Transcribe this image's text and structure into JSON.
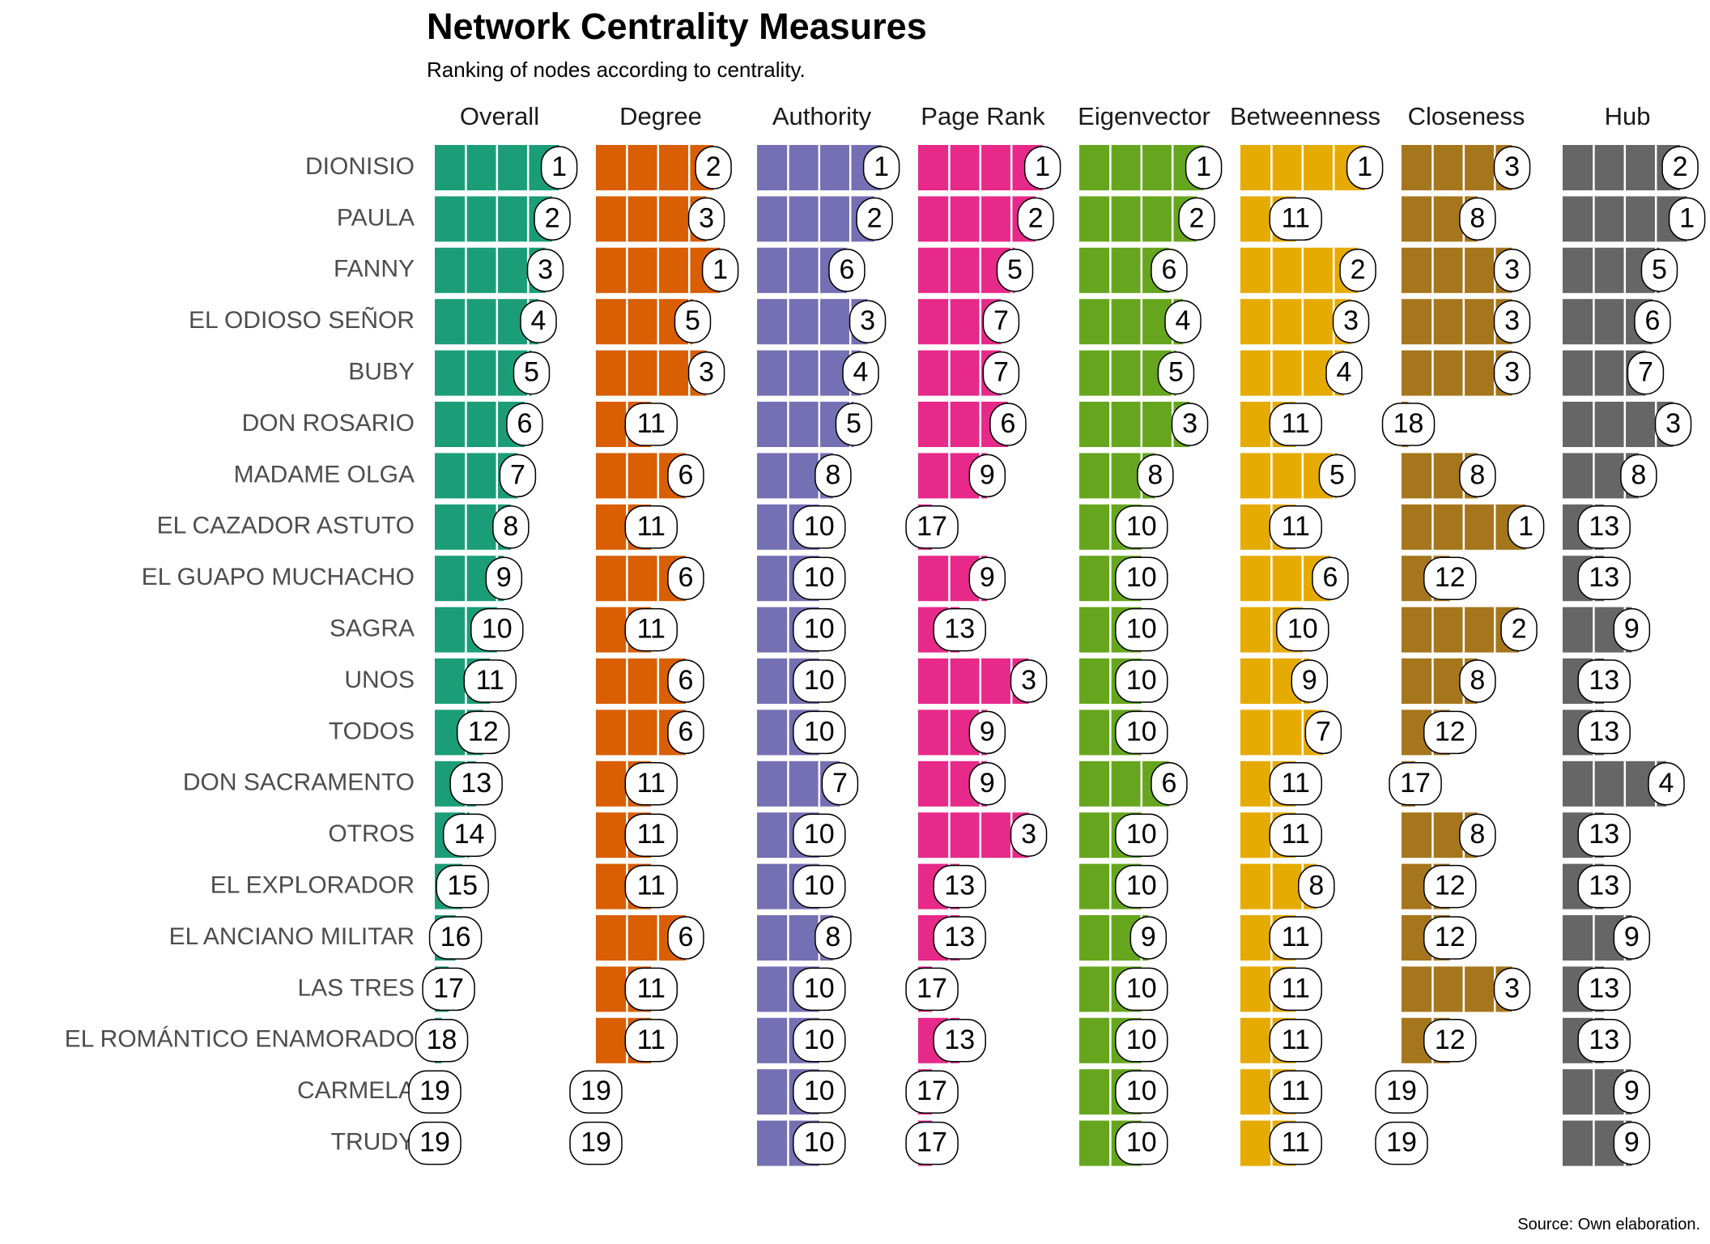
{
  "chart_data": {
    "type": "bar",
    "title": "Network Centrality Measures",
    "subtitle": "Ranking of nodes according to centrality.",
    "caption": "Source: Own elaboration.",
    "categories": [
      "DIONISIO",
      "PAULA",
      "FANNY",
      "EL ODIOSO SEÑOR",
      "BUBY",
      "DON ROSARIO",
      "MADAME OLGA",
      "EL CAZADOR ASTUTO",
      "EL GUAPO MUCHACHO",
      "SAGRA",
      "UNOS",
      "TODOS",
      "DON SACRAMENTO",
      "OTROS",
      "EL EXPLORADOR",
      "EL ANCIANO MILITAR",
      "LAS TRES",
      "EL ROMÁNTICO ENAMORADO",
      "CARMELA",
      "TRUDY"
    ],
    "series": [
      {
        "name": "Overall",
        "color": "#1b9e77",
        "values": [
          1,
          2,
          3,
          4,
          5,
          6,
          7,
          8,
          9,
          10,
          11,
          12,
          13,
          14,
          15,
          16,
          17,
          18,
          19,
          19
        ]
      },
      {
        "name": "Degree",
        "color": "#d95f02",
        "values": [
          2,
          3,
          1,
          5,
          3,
          11,
          6,
          11,
          6,
          11,
          6,
          6,
          11,
          11,
          11,
          6,
          11,
          11,
          19,
          19
        ]
      },
      {
        "name": "Authority",
        "color": "#7570b3",
        "values": [
          1,
          2,
          6,
          3,
          4,
          5,
          8,
          10,
          10,
          10,
          10,
          10,
          7,
          10,
          10,
          8,
          10,
          10,
          10,
          10
        ]
      },
      {
        "name": "Page Rank",
        "color": "#e7298a",
        "values": [
          1,
          2,
          5,
          7,
          7,
          6,
          9,
          17,
          9,
          13,
          3,
          9,
          9,
          3,
          13,
          13,
          17,
          13,
          17,
          17
        ]
      },
      {
        "name": "Eigenvector",
        "color": "#66a61e",
        "values": [
          1,
          2,
          6,
          4,
          5,
          3,
          8,
          10,
          10,
          10,
          10,
          10,
          6,
          10,
          10,
          9,
          10,
          10,
          10,
          10
        ]
      },
      {
        "name": "Betweenness",
        "color": "#e6ab02",
        "values": [
          1,
          11,
          2,
          3,
          4,
          11,
          5,
          11,
          6,
          10,
          9,
          7,
          11,
          11,
          8,
          11,
          11,
          11,
          11,
          11
        ]
      },
      {
        "name": "Closeness",
        "color": "#a6761d",
        "values": [
          3,
          8,
          3,
          3,
          3,
          18,
          8,
          1,
          12,
          2,
          8,
          12,
          17,
          8,
          12,
          12,
          3,
          12,
          19,
          19
        ]
      },
      {
        "name": "Hub",
        "color": "#666666",
        "values": [
          2,
          1,
          5,
          6,
          7,
          3,
          8,
          13,
          13,
          9,
          13,
          13,
          4,
          13,
          13,
          9,
          13,
          13,
          9,
          9
        ]
      }
    ]
  }
}
